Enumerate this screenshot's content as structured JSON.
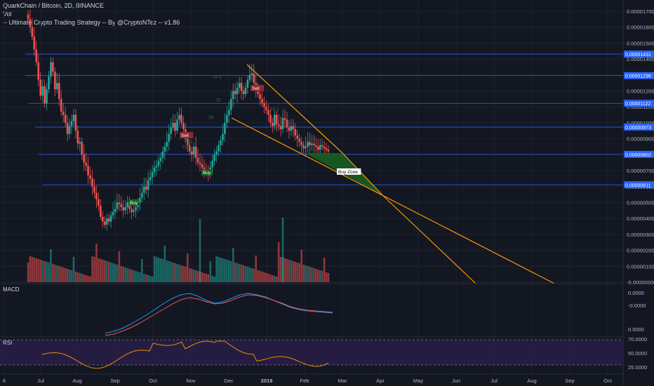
{
  "header": {
    "symbol_line": "QuarkChain / Bitcoin, 2D, BINANCE",
    "vol_label": "Vol",
    "strategy_line": "-- Ultimate Crypto Trading Strategy -- By @CryptoNTez -- v1.86"
  },
  "colors": {
    "background": "#131722",
    "up": "#26a69a",
    "down": "#ef5350",
    "hline": "#2962ff",
    "wedge": "#ff9800",
    "buyzone": "#1b5e20",
    "macd": "#2196f3",
    "signal": "#ef5350",
    "rsi": "#ff9800",
    "rsi_bg": "#2a1f4a"
  },
  "price_axis": {
    "ticks": [
      "0.00001700",
      "0.00001600",
      "0.00001500",
      "0.00001400",
      "0.00001300",
      "0.00001200",
      "0.00001100",
      "0.00001000",
      "0.00000900",
      "0.00000800",
      "0.00000700",
      "0.00000600",
      "0.00000500",
      "0.00000400",
      "0.00000300",
      "0.00000200",
      "0.00000100",
      "-0.00000000"
    ],
    "tags": [
      "0.00001431",
      "0.00001296",
      "0.00001122",
      "0.00000973",
      "0.00000802",
      "0.00000611"
    ]
  },
  "time_axis": [
    "6",
    "Jul",
    "Aug",
    "Sep",
    "Oct",
    "Nov",
    "Dec",
    "2019",
    "Feb",
    "Mar",
    "Apr",
    "May",
    "Jun",
    "Jul",
    "Aug",
    "Sep",
    "Oct"
  ],
  "annotations": {
    "sell_1": "Sell",
    "sell_2": "Sell",
    "buy_1": "Buy",
    "buy_2": "Buy",
    "buy_zone": "Buy Zone",
    "tp_1": "TP 1",
    "tp_2": "TP 2",
    "tp_3": "TP",
    "tp_4": "TP",
    "tp_5": "TP 1",
    "tp_6": "TP 3"
  },
  "macd": {
    "label": "MACD",
    "ticks": [
      "0.0000",
      "-0.0000",
      "0.0000"
    ]
  },
  "rsi": {
    "label": "RSI",
    "ticks": [
      "70.0000",
      "50.0000",
      "25.0000"
    ]
  },
  "chart_data": {
    "type": "candlestick",
    "title": "QuarkChain / Bitcoin, 2D, BINANCE",
    "ylim": [
      0,
      1.75e-05
    ],
    "hlines": [
      1.431e-05,
      1.296e-05,
      1.122e-05,
      9.73e-06,
      8.02e-06,
      6.11e-06
    ],
    "closes": [
      1650,
      1600,
      1540,
      1460,
      1380,
      1270,
      1170,
      1230,
      1120,
      1210,
      1290,
      1380,
      1320,
      1210,
      1250,
      1150,
      1070,
      1050,
      1000,
      930,
      980,
      1010,
      1050,
      950,
      870,
      880,
      800,
      750,
      730,
      670,
      650,
      600,
      560,
      520,
      480,
      410,
      380,
      360,
      400,
      380,
      420,
      440,
      460,
      500,
      490,
      470,
      450,
      470,
      500,
      460,
      440,
      450,
      470,
      500,
      530,
      560,
      600,
      580,
      640,
      660,
      690,
      720,
      730,
      760,
      780,
      820,
      850,
      880,
      930,
      970,
      1000,
      950,
      1020,
      1050,
      1000,
      960,
      900,
      860,
      820,
      800,
      850,
      780,
      750,
      740,
      720,
      700,
      690,
      680,
      720,
      760,
      800,
      820,
      860,
      890,
      930,
      1000,
      1050,
      1080,
      1150,
      1200,
      1180,
      1220,
      1250,
      1200,
      1180,
      1220,
      1270,
      1300,
      1310,
      1250,
      1200,
      1180,
      1150,
      1120,
      1100,
      1080,
      1050,
      1000,
      980,
      1050,
      990,
      980,
      960,
      1030,
      1020,
      970,
      950,
      980,
      960,
      920,
      900,
      880,
      860,
      840,
      850,
      880,
      860,
      870,
      860,
      850,
      830,
      860,
      850,
      840,
      830,
      820
    ],
    "volume_max_note": "volume bars shown with heights proportional to traded volume"
  }
}
